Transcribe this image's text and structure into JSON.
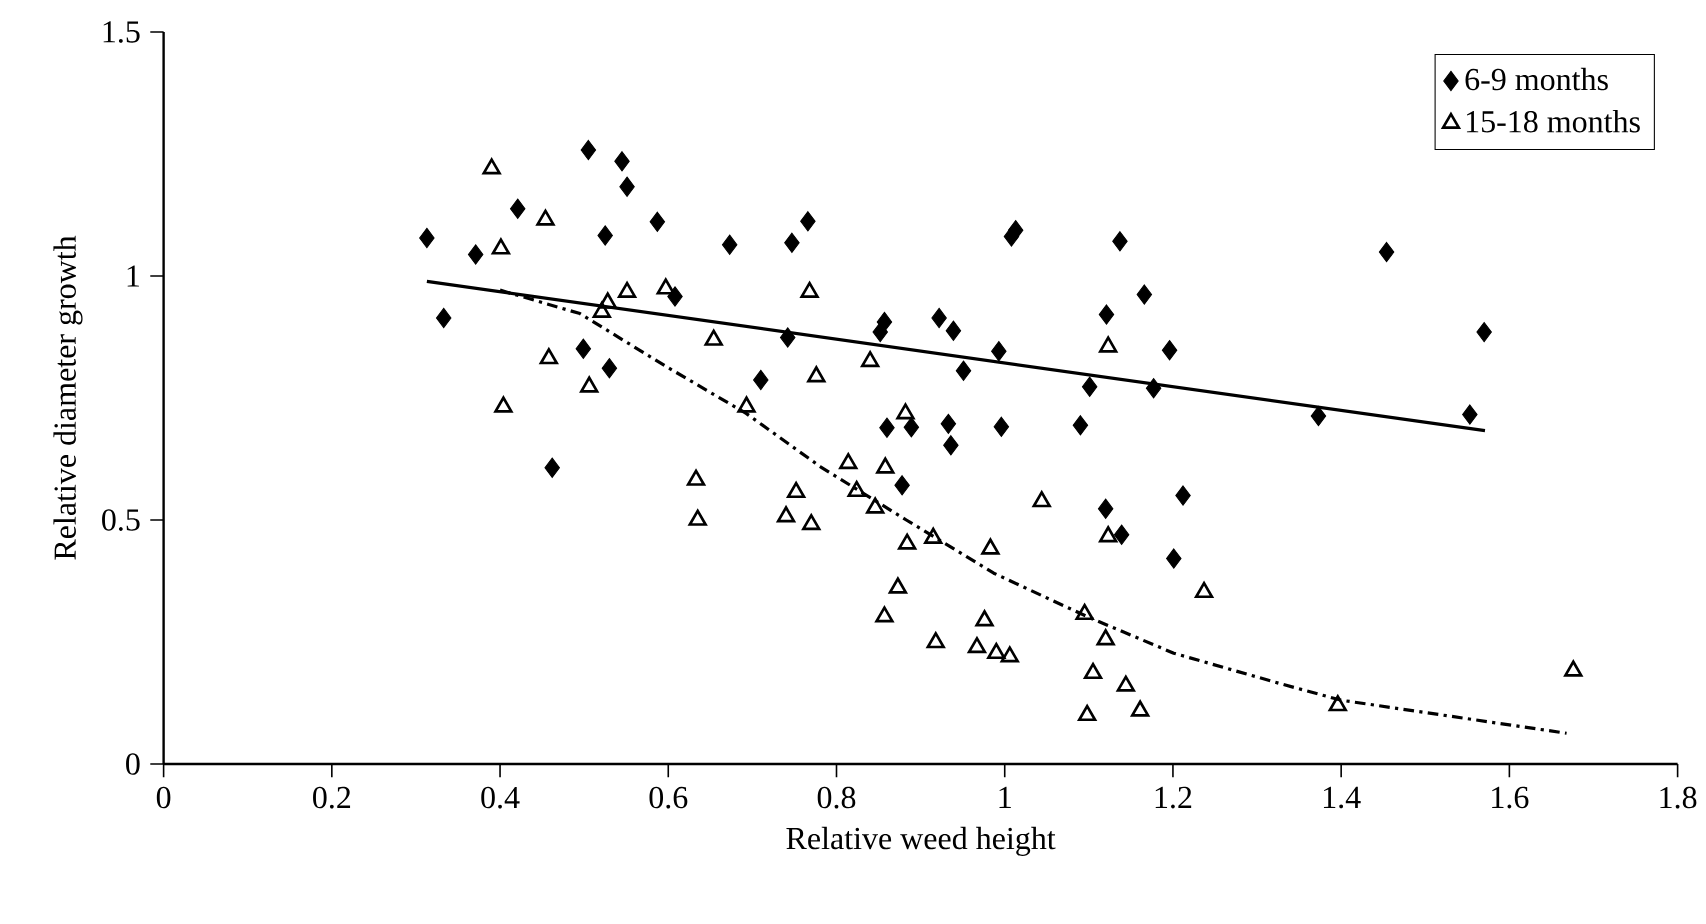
{
  "chart_data": {
    "type": "scatter",
    "xlabel": "Relative weed height",
    "ylabel": "Relative diameter growth",
    "xlim": [
      0,
      1.8
    ],
    "ylim": [
      0,
      1.5
    ],
    "xticks": [
      0,
      0.2,
      0.4,
      0.6,
      0.8,
      1,
      1.2,
      1.4,
      1.6,
      1.8
    ],
    "yticks": [
      0,
      0.5,
      1,
      1.5
    ],
    "legend": "top right",
    "series": [
      {
        "name": "6-9 months",
        "marker": "diamond",
        "color": "#000000",
        "x": [
          0.313,
          0.333,
          0.371,
          0.421,
          0.505,
          0.545,
          0.551,
          0.525,
          0.587,
          0.462,
          0.499,
          0.53,
          0.673,
          0.747,
          0.766,
          0.608,
          0.742,
          0.71,
          1.013,
          1.008,
          1.137,
          1.166,
          1.121,
          1.196,
          0.993,
          1.101,
          1.177,
          0.857,
          0.852,
          0.922,
          0.939,
          0.951,
          0.86,
          0.889,
          0.933,
          0.936,
          0.996,
          1.09,
          0.878,
          1.12,
          1.139,
          1.212,
          1.201,
          1.454,
          1.57,
          1.373,
          1.553
        ],
        "values": [
          1.078,
          0.914,
          1.044,
          1.138,
          1.258,
          1.235,
          1.183,
          1.083,
          1.111,
          0.607,
          0.851,
          0.811,
          1.064,
          1.068,
          1.112,
          0.958,
          0.874,
          0.787,
          1.094,
          1.081,
          1.071,
          0.962,
          0.921,
          0.848,
          0.846,
          0.773,
          0.77,
          0.906,
          0.885,
          0.914,
          0.888,
          0.806,
          0.689,
          0.69,
          0.697,
          0.653,
          0.691,
          0.694,
          0.571,
          0.523,
          0.47,
          0.55,
          0.421,
          1.049,
          0.885,
          0.713,
          0.716
        ]
      },
      {
        "name": "15-18 months",
        "marker": "triangle",
        "color": "#000000",
        "x": [
          0.39,
          0.454,
          0.401,
          0.404,
          0.458,
          0.506,
          0.521,
          0.528,
          0.551,
          0.597,
          0.654,
          0.693,
          0.633,
          0.635,
          0.752,
          0.74,
          0.77,
          0.768,
          0.776,
          0.84,
          0.882,
          0.814,
          0.858,
          0.824,
          0.846,
          0.884,
          0.915,
          0.983,
          0.873,
          0.857,
          0.918,
          0.976,
          0.967,
          0.99,
          1.006,
          1.044,
          1.123,
          1.123,
          1.237,
          1.095,
          1.12,
          1.105,
          1.144,
          1.161,
          1.098,
          1.396,
          1.676
        ],
        "values": [
          1.22,
          1.115,
          1.056,
          0.732,
          0.831,
          0.773,
          0.926,
          0.945,
          0.967,
          0.974,
          0.869,
          0.732,
          0.582,
          0.5,
          0.557,
          0.507,
          0.491,
          0.967,
          0.794,
          0.825,
          0.718,
          0.616,
          0.607,
          0.559,
          0.525,
          0.451,
          0.463,
          0.441,
          0.361,
          0.302,
          0.249,
          0.294,
          0.239,
          0.227,
          0.22,
          0.538,
          0.855,
          0.466,
          0.352,
          0.307,
          0.255,
          0.186,
          0.16,
          0.109,
          0.1,
          0.12,
          0.191
        ]
      },
      {
        "type": "line",
        "marker": "none",
        "line_style": "solid",
        "color": "#000000",
        "x": [
          0.313,
          1.571
        ],
        "values": [
          0.989,
          0.683
        ]
      },
      {
        "type": "line",
        "marker": "none",
        "line_style": "dashed",
        "color": "#000000",
        "x": [
          0.4,
          0.495,
          0.598,
          0.693,
          0.781,
          0.883,
          0.987,
          1.098,
          1.201,
          1.327,
          1.399,
          1.668
        ],
        "values": [
          0.971,
          0.923,
          0.814,
          0.718,
          0.609,
          0.5,
          0.391,
          0.302,
          0.227,
          0.165,
          0.131,
          0.063
        ]
      }
    ]
  }
}
